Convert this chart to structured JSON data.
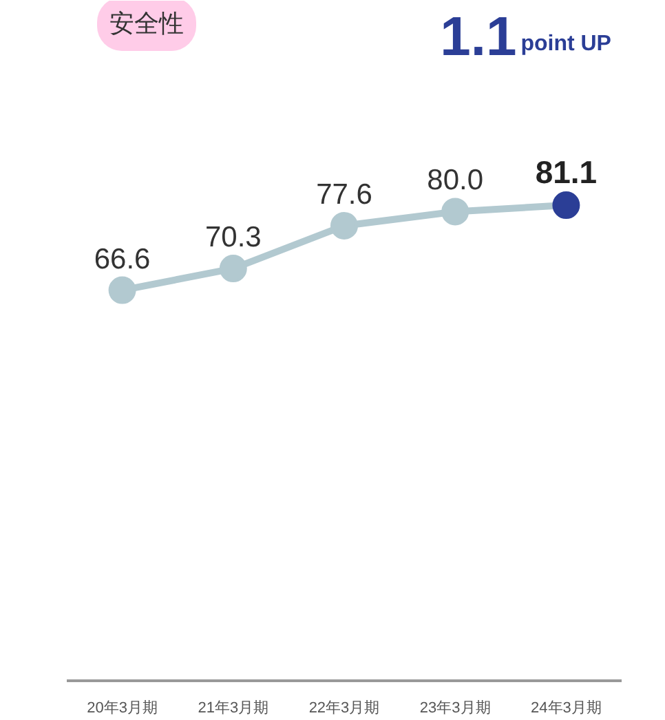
{
  "chart_data": {
    "type": "line",
    "title": "安全性",
    "categories": [
      "20年3月期",
      "21年3月期",
      "22年3月期",
      "23年3月期",
      "24年3月期"
    ],
    "series": [
      {
        "color": "#b2c9d0",
        "values": [
          66.6,
          70.3,
          77.6,
          80.0,
          81.1
        ],
        "colors": [
          "#b2c9d0",
          "#b2c9d0",
          "#b2c9d0",
          "#b2c9d0",
          "#2b3e96"
        ],
        "value_labels": [
          "66.6",
          "70.3",
          "77.6",
          "80.0",
          "81.1"
        ]
      }
    ],
    "tick_labels": "x",
    "grid": false,
    "marker": "circle",
    "line_style": "solid",
    "annotations": [
      "1.1",
      "point UP"
    ]
  }
}
